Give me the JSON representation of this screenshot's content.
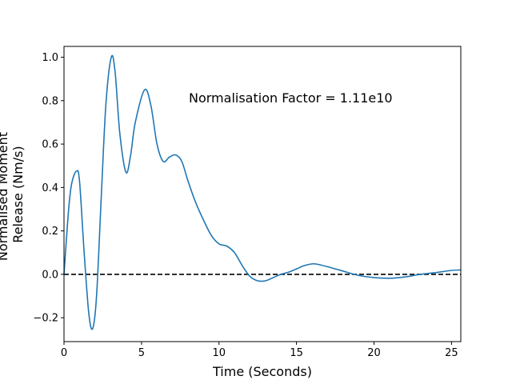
{
  "chart_data": {
    "type": "line",
    "xlabel": "Time (Seconds)",
    "ylabel_lines": [
      "Normalised Moment",
      "Release (Nm/s)"
    ],
    "annotation": "Normalisation Factor = 1.11e10",
    "xlim": [
      0,
      25.6
    ],
    "ylim": [
      -0.31,
      1.05
    ],
    "xticks": [
      0,
      5,
      10,
      15,
      20,
      25
    ],
    "xtick_labels": [
      "0",
      "5",
      "10",
      "15",
      "20",
      "25"
    ],
    "yticks": [
      -0.2,
      0.0,
      0.2,
      0.4,
      0.6,
      0.8,
      1.0
    ],
    "ytick_labels": [
      "−0.2",
      "0.0",
      "0.2",
      "0.4",
      "0.6",
      "0.8",
      "1.0"
    ],
    "grid": false,
    "reference_line": {
      "y": 0.0,
      "style": "dashed",
      "color": "#000000"
    },
    "series": [
      {
        "color": "#1f77b4",
        "x": [
          0,
          0.3,
          0.5,
          0.8,
          1.0,
          1.3,
          1.6,
          1.85,
          2.1,
          2.4,
          2.7,
          3.05,
          3.3,
          3.6,
          4.0,
          4.3,
          4.6,
          5.2,
          5.6,
          6.0,
          6.4,
          6.8,
          7.2,
          7.6,
          8.0,
          8.5,
          9.0,
          9.5,
          10.0,
          10.5,
          11.0,
          11.5,
          12.0,
          12.5,
          13.0,
          13.5,
          14.0,
          14.5,
          15.0,
          15.5,
          16.0,
          16.3,
          17.0,
          17.5,
          18.0,
          19.0,
          20.0,
          21.0,
          22.0,
          23.0,
          24.0,
          25.0,
          25.6
        ],
        "y": [
          0.0,
          0.3,
          0.42,
          0.475,
          0.43,
          0.1,
          -0.18,
          -0.25,
          -0.1,
          0.35,
          0.78,
          1.0,
          0.93,
          0.65,
          0.47,
          0.55,
          0.7,
          0.85,
          0.78,
          0.6,
          0.52,
          0.54,
          0.55,
          0.52,
          0.43,
          0.33,
          0.25,
          0.18,
          0.14,
          0.13,
          0.1,
          0.04,
          -0.01,
          -0.03,
          -0.03,
          -0.015,
          0.0,
          0.01,
          0.025,
          0.04,
          0.048,
          0.047,
          0.035,
          0.025,
          0.015,
          -0.005,
          -0.015,
          -0.018,
          -0.012,
          0.0,
          0.008,
          0.018,
          0.02
        ]
      }
    ]
  }
}
